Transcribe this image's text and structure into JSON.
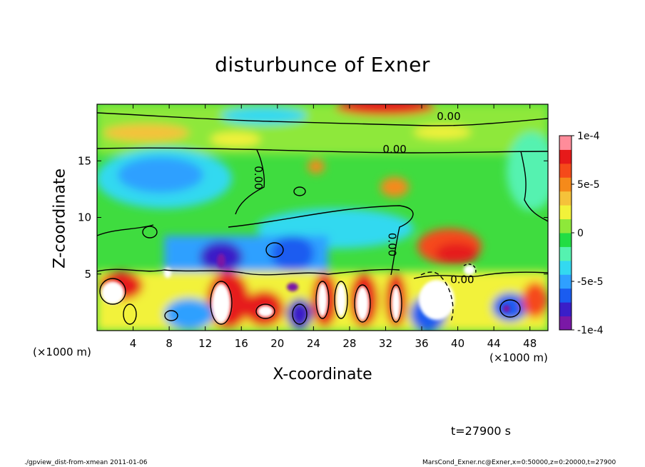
{
  "chart_data": {
    "type": "heatmap",
    "title": "disturbunce of Exner",
    "xlabel": "X-coordinate",
    "ylabel": "Z-coordinate",
    "x_unit": "(×1000 m)",
    "y_unit": "(×1000 m)",
    "xlim": [
      0,
      50
    ],
    "ylim": [
      0,
      20
    ],
    "xticks": [
      4,
      8,
      12,
      16,
      20,
      24,
      28,
      32,
      36,
      40,
      44,
      48
    ],
    "yticks": [
      5,
      10,
      15
    ],
    "colorbar": {
      "range": [
        -0.0001,
        0.0001
      ],
      "tick_values": [
        0.0001,
        5e-05,
        0,
        -5e-05,
        -0.0001
      ],
      "tick_labels": [
        "1e-4",
        "5e-5",
        "0",
        "-5e-5",
        "-1e-4"
      ],
      "colors": [
        "#7a18a6",
        "#3a1ec8",
        "#1a5cf0",
        "#2fa0ff",
        "#33d9f0",
        "#55f2b0",
        "#22dd44",
        "#8ee83a",
        "#f2f23a",
        "#f5c23a",
        "#f58a1a",
        "#f54a1a",
        "#e61a1a",
        "#ff8c9a"
      ]
    },
    "contour_labels": [
      {
        "text": "0.00",
        "x": 39.0,
        "z": 18.6
      },
      {
        "text": "0.00",
        "x": 33.0,
        "z": 15.7
      },
      {
        "text": "0.00",
        "x": 17.5,
        "z": 13.5
      },
      {
        "text": "0.00",
        "x": 32.3,
        "z": 7.6
      },
      {
        "text": "0.00",
        "x": 40.5,
        "z": 4.2
      }
    ],
    "time_label": "t=27900 s",
    "footer_left": "./gpview_dist-from-xmean   2011-01-06",
    "footer_right": "MarsCond_Exner.nc@Exner,x=0:50000,z=0:20000,t=27900"
  }
}
